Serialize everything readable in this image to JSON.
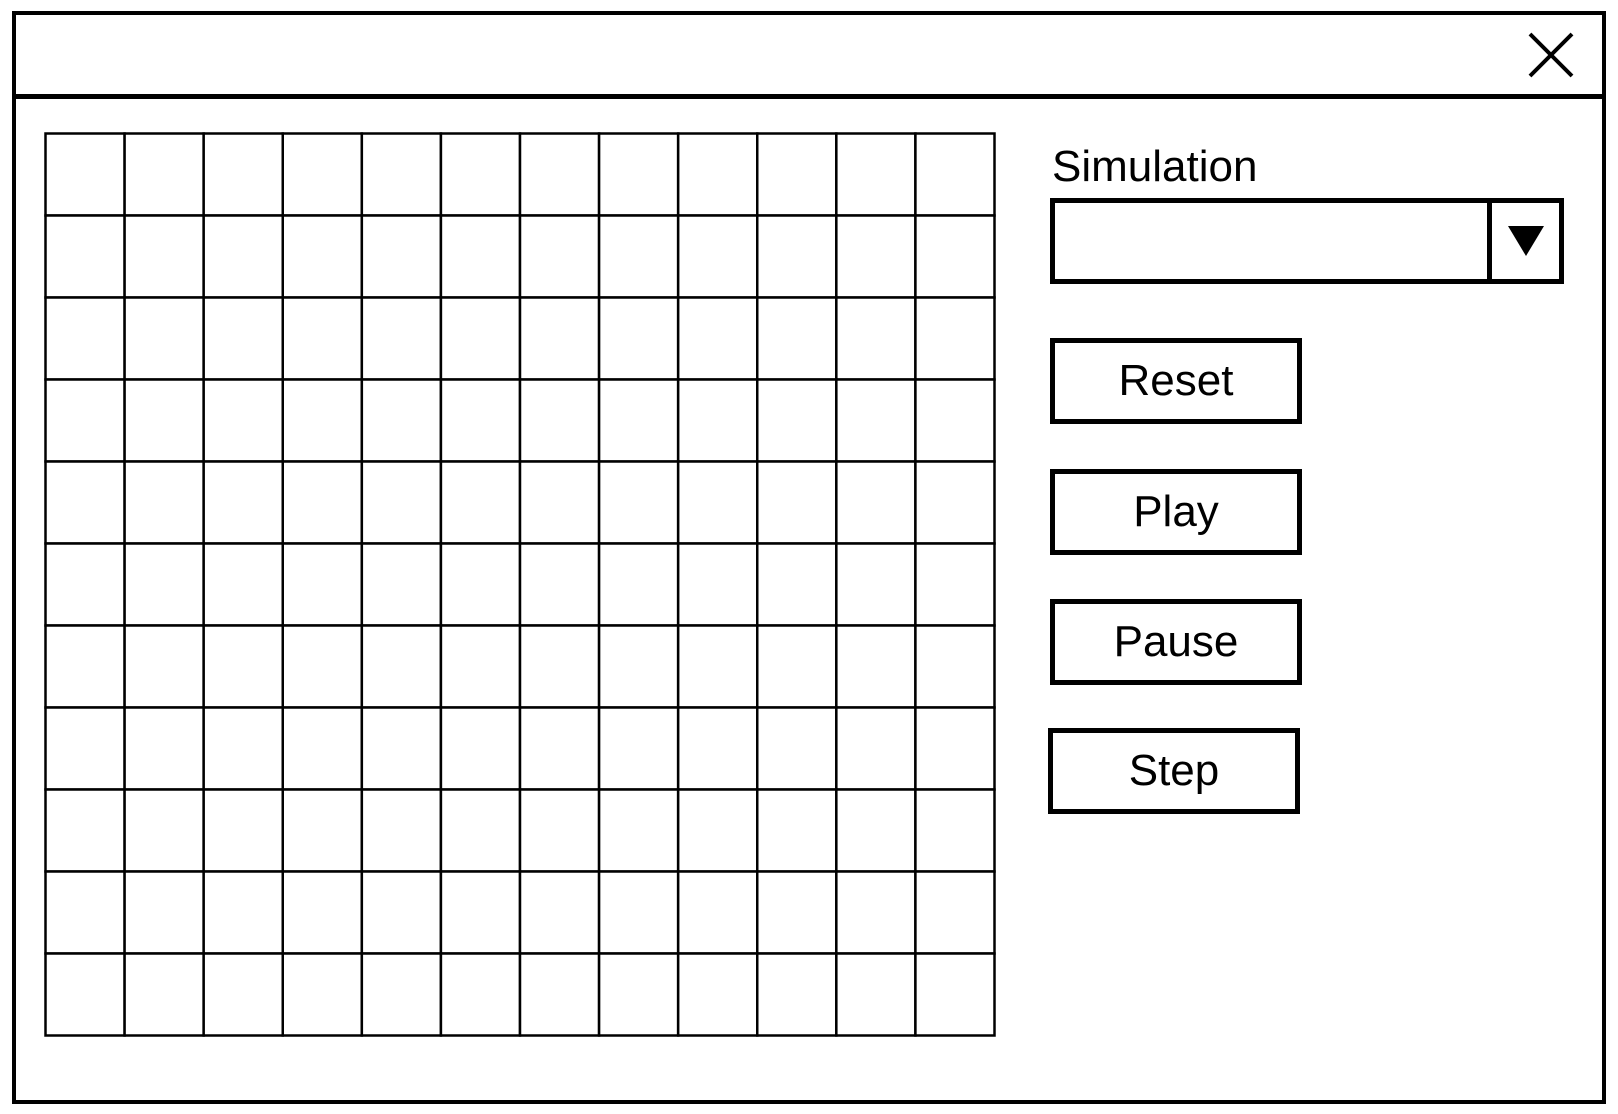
{
  "window": {
    "title": "",
    "close_icon": "close-icon"
  },
  "grid": {
    "columns": 12,
    "rows": 11,
    "line_color": "#000000",
    "cell_color": "#ffffff"
  },
  "controls": {
    "simulation_label": "Simulation",
    "simulation_select": {
      "selected_value": "",
      "arrow_icon": "triangle-down-icon"
    },
    "buttons": {
      "reset": "Reset",
      "play": "Play",
      "pause": "Pause",
      "step": "Step"
    }
  }
}
